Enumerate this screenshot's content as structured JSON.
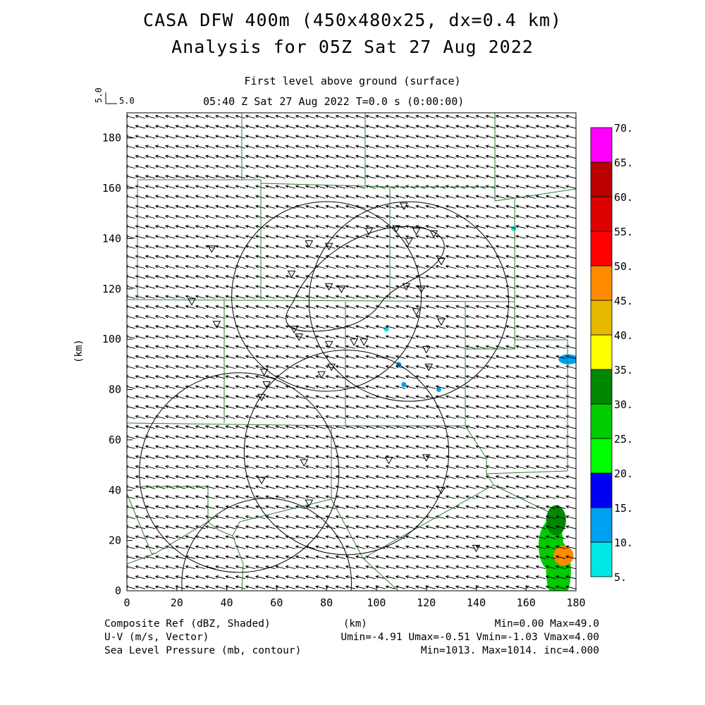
{
  "header": {
    "title_line1": "CASA DFW 400m (450x480x25, dx=0.4 km)",
    "title_line2": "Analysis for 05Z Sat 27 Aug 2022",
    "subtitle_level": "First level above ground (surface)",
    "subtitle_time": "05:40 Z Sat 27 Aug 2022   T=0.0 s (0:00:00)",
    "vector_scale_label": "5.0",
    "vector_scale_label_rot": "5.0"
  },
  "footer": {
    "left_line1": "Composite Ref (dBZ, Shaded)",
    "left_line2": "U-V (m/s, Vector)",
    "left_line3": "Sea Level Pressure (mb, contour)",
    "center_unit": "(km)",
    "right_line1": "Min=0.00 Max=49.0",
    "right_line2": "Umin=-4.91 Umax=-0.51 Vmin=-1.03 Vmax=4.00",
    "right_line3": "Min=1013. Max=1014. inc=4.000"
  },
  "chart_data": {
    "type": "heatmap",
    "xlabel": "",
    "ylabel": "(km)",
    "xlim": [
      0,
      180
    ],
    "ylim": [
      0,
      190
    ],
    "x_ticks": [
      0,
      20,
      40,
      60,
      80,
      100,
      120,
      140,
      160,
      180
    ],
    "y_ticks": [
      0,
      20,
      40,
      60,
      80,
      100,
      120,
      140,
      160,
      180
    ],
    "colorbar": {
      "levels": [
        5,
        10,
        15,
        20,
        25,
        30,
        35,
        40,
        45,
        50,
        55,
        60,
        65,
        70
      ],
      "labels": [
        "5.",
        "10.",
        "15.",
        "20.",
        "25.",
        "30.",
        "35.",
        "40.",
        "45.",
        "50.",
        "55.",
        "60.",
        "65.",
        "70."
      ],
      "colors": [
        "#00e8e8",
        "#00a0f0",
        "#0000f0",
        "#00ff00",
        "#00cc00",
        "#008800",
        "#ffff00",
        "#e6b800",
        "#ff8c00",
        "#ff0000",
        "#dd0000",
        "#bb0000",
        "#ff00ff"
      ]
    },
    "wind_vector": {
      "u": -4.0,
      "v": 1.0
    },
    "radar_circles": [
      {
        "cx": 80,
        "cy": 117,
        "r": 38
      },
      {
        "cx": 113,
        "cy": 115,
        "r": 40
      },
      {
        "cx": 45,
        "cy": 47,
        "r": 40
      },
      {
        "cx": 88,
        "cy": 55,
        "r": 41
      }
    ],
    "station_markers": [
      [
        111,
        153
      ],
      [
        97,
        143
      ],
      [
        108,
        144
      ],
      [
        116,
        143
      ],
      [
        123,
        142
      ],
      [
        73,
        138
      ],
      [
        81,
        137
      ],
      [
        113,
        139
      ],
      [
        34,
        136
      ],
      [
        126,
        131
      ],
      [
        66,
        126
      ],
      [
        81,
        121
      ],
      [
        86,
        120
      ],
      [
        112,
        121
      ],
      [
        118,
        120
      ],
      [
        26,
        115
      ],
      [
        116,
        111
      ],
      [
        126,
        107
      ],
      [
        36,
        106
      ],
      [
        67,
        104
      ],
      [
        69,
        101
      ],
      [
        81,
        98
      ],
      [
        91,
        99
      ],
      [
        95,
        99
      ],
      [
        120,
        96
      ],
      [
        82,
        89
      ],
      [
        78,
        86
      ],
      [
        121,
        89
      ],
      [
        55,
        87
      ],
      [
        56,
        82
      ],
      [
        54,
        77
      ],
      [
        71,
        51
      ],
      [
        105,
        52
      ],
      [
        120,
        53
      ],
      [
        54,
        44
      ],
      [
        126,
        40
      ],
      [
        73,
        35
      ],
      [
        140,
        17
      ]
    ],
    "radar_echoes": [
      {
        "x": 173,
        "y": 8,
        "rx": 5,
        "ry": 12,
        "dbz": 25
      },
      {
        "x": 170,
        "y": 18,
        "rx": 5,
        "ry": 10,
        "dbz": 25
      },
      {
        "x": 175,
        "y": 14,
        "rx": 4,
        "ry": 4,
        "dbz": 45
      },
      {
        "x": 172,
        "y": 28,
        "rx": 4,
        "ry": 6,
        "dbz": 30
      },
      {
        "x": 177,
        "y": 92,
        "rx": 4,
        "ry": 2,
        "dbz": 10
      },
      {
        "x": 109,
        "y": 90,
        "rx": 1,
        "ry": 1,
        "dbz": 10
      },
      {
        "x": 111,
        "y": 82,
        "rx": 1,
        "ry": 1,
        "dbz": 10
      },
      {
        "x": 125,
        "y": 80,
        "rx": 1,
        "ry": 1,
        "dbz": 10
      },
      {
        "x": 104,
        "y": 104,
        "rx": 1,
        "ry": 1,
        "dbz": 5
      },
      {
        "x": 155,
        "y": 144,
        "rx": 1,
        "ry": 1,
        "dbz": 5
      }
    ]
  }
}
